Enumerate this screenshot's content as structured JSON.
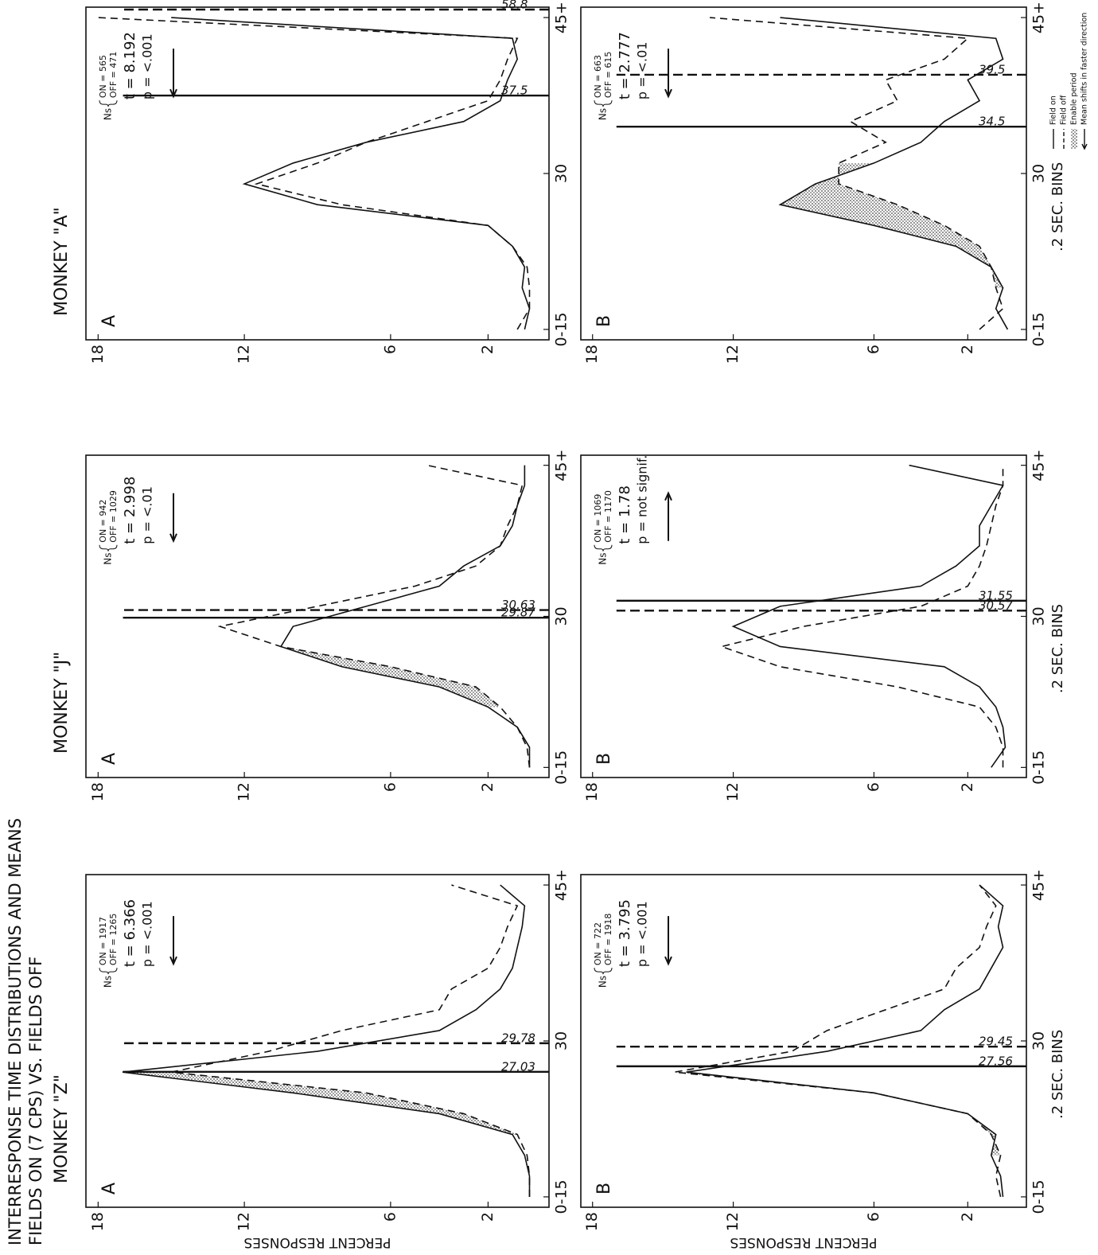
{
  "title": "INTERRESPONSE TIME DISTRIBUTIONS AND MEANS",
  "subtitle": "FIELDS ON (7 CPS) VS. FIELDS OFF",
  "legend": [
    "Field on",
    "Field off",
    "Enable period",
    "Mean shifts in faster direction"
  ],
  "chart_data": [
    {
      "type": "line",
      "heading": "MONKEY \"Z\"",
      "panel": "A",
      "y_label": "PERCENT RESPONSES",
      "x": [
        15,
        17,
        19,
        21,
        23,
        25,
        27,
        29,
        31,
        33,
        35,
        37,
        39,
        41,
        43,
        45
      ],
      "series": [
        {
          "style": "solid",
          "values": [
            0.3,
            0.3,
            0.5,
            1,
            4,
            10,
            17,
            9,
            4,
            2.5,
            1.5,
            1,
            0.8,
            0.6,
            0.5,
            1.5
          ]
        },
        {
          "style": "dashed",
          "values": [
            0.3,
            0.3,
            0.4,
            0.8,
            3,
            7,
            15,
            11,
            8,
            4,
            3.5,
            2,
            1.5,
            1.2,
            0.8,
            3.5
          ]
        }
      ],
      "enable": [
        21,
        27
      ],
      "means": [
        {
          "value": 27.03,
          "style": "solid"
        },
        {
          "value": 29.78,
          "style": "dashed"
        }
      ],
      "stats": {
        "ns": "Ns",
        "on": "ON = 1917",
        "off": "OFF = 1265",
        "t": "t = 6.366",
        "p": "p = <.001",
        "arrow": "left"
      },
      "xlim": [
        14,
        46
      ],
      "xticks": [
        {
          "value": 15,
          "label": "0-15"
        },
        30,
        {
          "value": 45,
          "label": "45+"
        }
      ],
      "ylim": [
        -0.5,
        18.5
      ],
      "yticks": [
        2,
        6,
        12,
        18
      ]
    },
    {
      "type": "line",
      "panel": "B",
      "y_label": "PERCENT RESPONSES",
      "x_label": ".2 SEC. BINS",
      "x": [
        15,
        17,
        19,
        21,
        23,
        25,
        27,
        29,
        31,
        33,
        35,
        37,
        39,
        41,
        43,
        45
      ],
      "series": [
        {
          "style": "solid",
          "values": [
            0.5,
            0.6,
            1,
            0.8,
            2,
            6,
            14,
            8,
            4,
            3,
            1.5,
            1,
            0.5,
            0.7,
            0.5,
            1.5
          ]
        },
        {
          "style": "dashed",
          "values": [
            0.6,
            0.8,
            0.6,
            1,
            2,
            6,
            14.5,
            9.5,
            8,
            5.5,
            3,
            2.5,
            1.5,
            1.2,
            0.8,
            1.5
          ]
        }
      ],
      "enable": [
        19,
        27
      ],
      "means": [
        {
          "value": 27.56,
          "style": "solid"
        },
        {
          "value": 29.45,
          "style": "dashed"
        }
      ],
      "stats": {
        "ns": "Ns",
        "on": "ON = 722",
        "off": "OFF = 1918",
        "t": "t = 3.795",
        "p": "p = <.001",
        "arrow": "left"
      },
      "xlim": [
        14,
        46
      ],
      "xticks": [
        {
          "value": 15,
          "label": "0-15"
        },
        30,
        {
          "value": 45,
          "label": "45+"
        }
      ],
      "ylim": [
        -0.5,
        18.5
      ],
      "yticks": [
        2,
        6,
        12,
        18
      ]
    },
    {
      "type": "line",
      "heading": "MONKEY \"J\"",
      "panel": "A",
      "x": [
        15,
        17,
        19,
        21,
        23,
        25,
        27,
        29,
        31,
        33,
        35,
        37,
        39,
        41,
        43,
        45
      ],
      "series": [
        {
          "style": "solid",
          "values": [
            0.3,
            0.3,
            0.8,
            2,
            4,
            8,
            10.5,
            10,
            7,
            4,
            3,
            1.5,
            1,
            0.8,
            0.5,
            0.5
          ]
        },
        {
          "style": "dashed",
          "values": [
            0.3,
            0.4,
            0.8,
            1.5,
            2.5,
            6,
            10.5,
            13,
            9,
            5,
            2.5,
            1.5,
            1.2,
            0.8,
            0.6,
            4.5
          ]
        }
      ],
      "enable": [
        21,
        27
      ],
      "means": [
        {
          "value": 29.87,
          "style": "solid"
        },
        {
          "value": 30.63,
          "style": "dashed"
        }
      ],
      "stats": {
        "ns": "Ns",
        "on": "ON = 942",
        "off": "OFF = 1029",
        "t": "t = 2.998",
        "p": "p = <.01",
        "arrow": "left"
      },
      "xlim": [
        14,
        46
      ],
      "xticks": [
        {
          "value": 15,
          "label": "0-15"
        },
        30,
        {
          "value": 45,
          "label": "45+"
        }
      ],
      "ylim": [
        -0.5,
        18.5
      ],
      "yticks": [
        2,
        6,
        12,
        18
      ]
    },
    {
      "type": "line",
      "panel": "B",
      "x_label": ".2 SEC. BINS",
      "x": [
        15,
        17,
        19,
        21,
        23,
        25,
        27,
        29,
        31,
        33,
        35,
        37,
        39,
        41,
        43,
        45
      ],
      "series": [
        {
          "style": "solid",
          "values": [
            1,
            0.4,
            0.5,
            0.8,
            1.5,
            3,
            10,
            12,
            10,
            4,
            2.5,
            1.5,
            1.5,
            1,
            0.5,
            4.5
          ]
        },
        {
          "style": "dashed",
          "values": [
            0.5,
            0.5,
            0.8,
            1.5,
            5,
            10,
            12.5,
            9,
            4,
            2,
            1.5,
            1.2,
            1,
            0.8,
            0.5,
            0.5
          ]
        }
      ],
      "means": [
        {
          "value": 31.55,
          "style": "solid"
        },
        {
          "value": 30.57,
          "style": "dashed"
        }
      ],
      "stats": {
        "ns": "Ns",
        "on": "ON = 1069",
        "off": "OFF = 1170",
        "t": "t = 1.78",
        "p": "p = not signif.",
        "arrow": "right"
      },
      "xlim": [
        14,
        46
      ],
      "xticks": [
        {
          "value": 15,
          "label": "0-15"
        },
        30,
        {
          "value": 45,
          "label": "45+"
        }
      ],
      "ylim": [
        -0.5,
        18.5
      ],
      "yticks": [
        2,
        6,
        12,
        18
      ]
    },
    {
      "type": "line",
      "heading": "MONKEY \"A\"",
      "panel": "A",
      "x": [
        15,
        17,
        19,
        21,
        23,
        25,
        27,
        29,
        31,
        33,
        35,
        37,
        39,
        41,
        43,
        45
      ],
      "series": [
        {
          "style": "solid",
          "values": [
            0.5,
            0.3,
            0.6,
            0.5,
            1,
            2,
            9,
            12,
            10,
            7,
            3,
            1.5,
            1.2,
            0.8,
            1,
            15
          ]
        },
        {
          "style": "dashed",
          "values": [
            0.8,
            0.3,
            0.3,
            0.4,
            1,
            2,
            8,
            11.5,
            9,
            7,
            4.5,
            2,
            1.5,
            1.2,
            0.8,
            18
          ]
        }
      ],
      "means": [
        {
          "value": 37.5,
          "style": "solid"
        },
        {
          "value": 58.8,
          "style": "dashed"
        }
      ],
      "stats": {
        "ns": "Ns",
        "on": "ON = 565",
        "off": "OFF = 471",
        "t": "t = 8.192",
        "p": "p = <.001",
        "arrow": "left"
      },
      "xlim": [
        14,
        46
      ],
      "xticks": [
        {
          "value": 15,
          "label": "0-15"
        },
        30,
        {
          "value": 45,
          "label": "45+"
        }
      ],
      "ylim": [
        -0.5,
        18.5
      ],
      "yticks": [
        2,
        6,
        12,
        18
      ]
    },
    {
      "type": "line",
      "panel": "B",
      "x_label": ".2 SEC. BINS",
      "x": [
        15,
        17,
        19,
        21,
        23,
        25,
        27,
        29,
        31,
        33,
        35,
        37,
        39,
        41,
        43,
        45
      ],
      "series": [
        {
          "style": "solid",
          "values": [
            0.3,
            0.8,
            0.5,
            1,
            2.5,
            6,
            10,
            8.5,
            6,
            4,
            3,
            1.5,
            2,
            0.5,
            0.8,
            10
          ]
        },
        {
          "style": "dashed",
          "values": [
            1.5,
            0.5,
            0.8,
            1,
            1.5,
            3,
            5,
            7.5,
            7.5,
            5.5,
            7,
            5,
            5.5,
            3,
            2,
            13
          ]
        }
      ],
      "enable": [
        19,
        31
      ],
      "means": [
        {
          "value": 34.5,
          "style": "solid"
        },
        {
          "value": 39.5,
          "style": "dashed"
        }
      ],
      "stats": {
        "ns": "Ns",
        "on": "ON = 663",
        "off": "OFF = 615",
        "t": "t = 2.777",
        "p": "p = <.01",
        "arrow": "left"
      },
      "xlim": [
        14,
        46
      ],
      "xticks": [
        {
          "value": 15,
          "label": "0-15"
        },
        30,
        {
          "value": 45,
          "label": "45+"
        }
      ],
      "ylim": [
        -0.5,
        18.5
      ],
      "yticks": [
        2,
        6,
        12,
        18
      ]
    }
  ]
}
